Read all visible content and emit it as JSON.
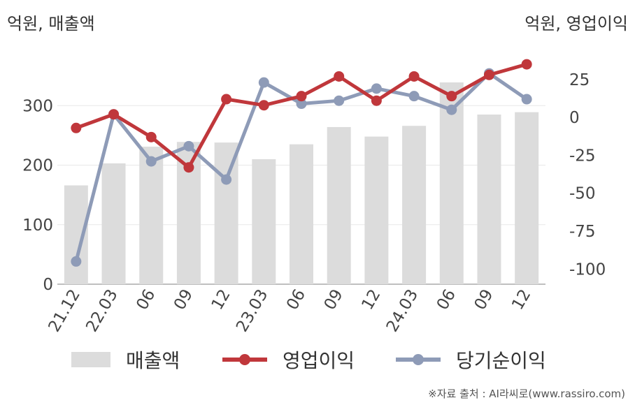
{
  "units": {
    "left": "억원, 매출액",
    "right": "억원, 영업이익"
  },
  "legend": {
    "bar": "매출액",
    "op": "영업이익",
    "net": "당기순이익"
  },
  "source": "※자료 출처 : AI라씨로(www.rassiro.com)",
  "colors": {
    "bar": "#dcdcdc",
    "op": "#c0373b",
    "net": "#8e9bb7"
  },
  "chart_data": {
    "type": "bar+line",
    "categories": [
      "21.12",
      "22.03",
      "06",
      "09",
      "12",
      "23.03",
      "06",
      "09",
      "12",
      "24.03",
      "06",
      "09",
      "12"
    ],
    "left_axis": {
      "ticks": [
        0,
        100,
        200,
        300
      ],
      "range": [
        0,
        400
      ]
    },
    "right_axis": {
      "ticks": [
        -100,
        -75,
        -50,
        -25,
        0,
        25
      ],
      "range": [
        -110,
        47
      ]
    },
    "series": [
      {
        "name": "매출액",
        "type": "bar",
        "axis": "left",
        "values": [
          166,
          203,
          231,
          239,
          238,
          210,
          235,
          264,
          248,
          266,
          339,
          285,
          289
        ]
      },
      {
        "name": "영업이익",
        "type": "line",
        "axis": "right",
        "values": [
          -7,
          2,
          -13,
          -33,
          12,
          8,
          14,
          27,
          11,
          27,
          14,
          28,
          35
        ]
      },
      {
        "name": "당기순이익",
        "type": "line",
        "axis": "right",
        "values": [
          -95,
          2,
          -29,
          -19,
          -41,
          23,
          9,
          11,
          19,
          14,
          5,
          29,
          12
        ]
      }
    ],
    "grid": true,
    "legend_position": "bottom"
  }
}
